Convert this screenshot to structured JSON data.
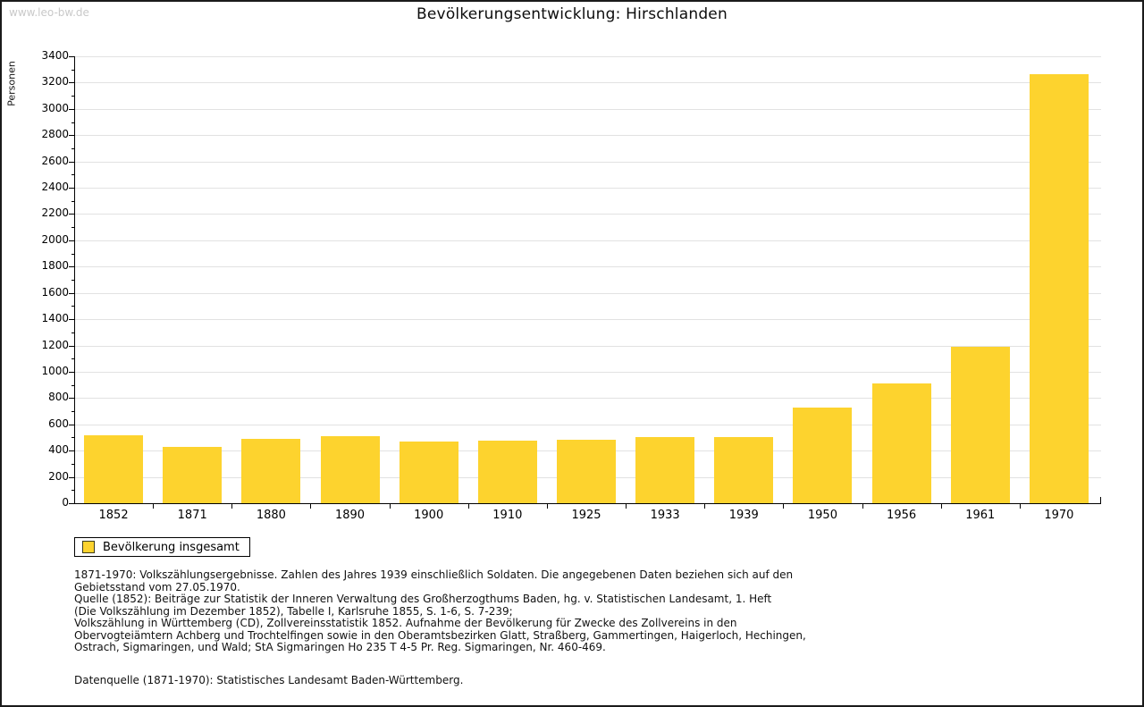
{
  "watermark": "www.leo-bw.de",
  "title": "Bevölkerungsentwicklung: Hirschlanden",
  "chart_data": {
    "type": "bar",
    "title": "Bevölkerungsentwicklung: Hirschlanden",
    "xlabel": "",
    "ylabel": "Personen",
    "categories": [
      "1852",
      "1871",
      "1880",
      "1890",
      "1900",
      "1910",
      "1925",
      "1933",
      "1939",
      "1950",
      "1956",
      "1961",
      "1970"
    ],
    "values": [
      520,
      430,
      490,
      508,
      470,
      478,
      483,
      502,
      504,
      728,
      910,
      1192,
      3267
    ],
    "ylim": [
      0,
      3400
    ],
    "ytick_step": 200,
    "yminor_step": 100,
    "grid": true,
    "legend_position": "bottom-left",
    "legend": {
      "label": "Bevölkerung insgesamt"
    },
    "bar_color": "#fdd32e",
    "grid_color": "#e2e2e2"
  },
  "footnotes": {
    "lines": [
      "1871-1970: Volkszählungsergebnisse. Zahlen des Jahres 1939 einschließlich Soldaten. Die angegebenen Daten beziehen sich auf den",
      "Gebietsstand vom 27.05.1970.",
      "Quelle (1852): Beiträge zur Statistik der Inneren Verwaltung des Großherzogthums Baden, hg. v. Statistischen Landesamt, 1. Heft",
      "(Die Volkszählung im Dezember 1852), Tabelle I, Karlsruhe 1855, S. 1-6, S. 7-239;",
      "Volkszählung in Württemberg (CD), Zollvereinsstatistik 1852. Aufnahme der Bevölkerung für Zwecke des Zollvereins in den",
      "Obervogteiämtern Achberg und Trochtelfingen sowie in den Oberamtsbezirken Glatt, Straßberg, Gammertingen, Haigerloch, Hechingen,",
      "Ostrach, Sigmaringen, und Wald; StA Sigmaringen Ho 235 T 4-5 Pr. Reg. Sigmaringen, Nr. 460-469."
    ],
    "datasource": "Datenquelle (1871-1970): Statistisches Landesamt Baden-Württemberg."
  }
}
